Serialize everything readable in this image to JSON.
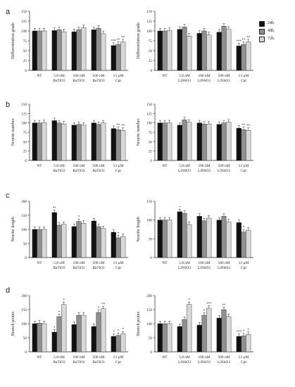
{
  "panels": [
    {
      "letter": "a"
    },
    {
      "letter": "b"
    },
    {
      "letter": "c"
    },
    {
      "letter": "d"
    }
  ],
  "legend": [
    {
      "label": "24h",
      "color": "#111111"
    },
    {
      "label": "48h",
      "color": "#8f8f8f"
    },
    {
      "label": "72h",
      "color": "#d9d9d9"
    }
  ],
  "series_names": [
    "24h",
    "48h",
    "72h"
  ],
  "colors": {
    "s24": "#111111",
    "s48": "#8f8f8f",
    "s72": "#d9d9d9"
  },
  "chart_data": [
    {
      "type": "bar",
      "panel": "a",
      "material": "BaTiO3",
      "ylabel": "Differentiation grade",
      "ylim": [
        0,
        150
      ],
      "yticks": [
        0,
        25,
        50,
        75,
        100,
        125,
        150
      ],
      "categories": [
        "NT",
        "5.8 nM BaTiO3",
        "100 nM BaTiO3",
        "500 nM BaTiO3",
        "13 µM Cpt"
      ],
      "series": [
        {
          "name": "24h",
          "values": [
            100,
            101,
            98,
            103,
            63
          ]
        },
        {
          "name": "48h",
          "values": [
            100,
            103,
            103,
            107,
            66
          ]
        },
        {
          "name": "72h",
          "values": [
            100,
            98,
            108,
            93,
            72
          ]
        }
      ],
      "annotations": [
        [
          "",
          "",
          ""
        ],
        [
          "",
          "",
          ""
        ],
        [
          "",
          "",
          ""
        ],
        [
          "",
          "",
          ""
        ],
        [
          "***",
          "**",
          "**"
        ]
      ]
    },
    {
      "type": "bar",
      "panel": "a",
      "material": "LiNbO3",
      "ylabel": "Differentiation grade",
      "ylim": [
        0,
        150
      ],
      "yticks": [
        0,
        25,
        50,
        75,
        100,
        125,
        150
      ],
      "categories": [
        "NT",
        "5.8 nM LiNbO3",
        "100 nM LiNbO3",
        "500 nM LiNbO3",
        "13 µM Cpt"
      ],
      "series": [
        {
          "name": "24h",
          "values": [
            100,
            104,
            94,
            97,
            62
          ]
        },
        {
          "name": "48h",
          "values": [
            100,
            110,
            100,
            112,
            66
          ]
        },
        {
          "name": "72h",
          "values": [
            101,
            87,
            90,
            104,
            72
          ]
        }
      ],
      "annotations": [
        [
          "",
          "",
          ""
        ],
        [
          "",
          "",
          ""
        ],
        [
          "",
          "",
          ""
        ],
        [
          "",
          "",
          ""
        ],
        [
          "***",
          "**",
          "**"
        ]
      ]
    },
    {
      "type": "bar",
      "panel": "b",
      "material": "BaTiO3",
      "ylabel": "Neurite number",
      "ylim": [
        0,
        150
      ],
      "yticks": [
        0,
        25,
        50,
        75,
        100,
        125,
        150
      ],
      "categories": [
        "NT",
        "5.8 nM BaTiO3",
        "100 nM BaTiO3",
        "500 nM BaTiO3",
        "13 µM Cpt"
      ],
      "series": [
        {
          "name": "24h",
          "values": [
            100,
            106,
            94,
            100,
            85
          ]
        },
        {
          "name": "48h",
          "values": [
            100,
            100,
            96,
            96,
            82
          ]
        },
        {
          "name": "72h",
          "values": [
            101,
            97,
            94,
            100,
            80
          ]
        }
      ],
      "annotations": [
        [
          "",
          "",
          ""
        ],
        [
          "",
          "",
          ""
        ],
        [
          "",
          "",
          ""
        ],
        [
          "",
          "",
          ""
        ],
        [
          "",
          "**",
          "**"
        ]
      ]
    },
    {
      "type": "bar",
      "panel": "b",
      "material": "LiNbO3",
      "ylabel": "Neurite number",
      "ylim": [
        0,
        150
      ],
      "yticks": [
        0,
        25,
        50,
        75,
        100,
        125,
        150
      ],
      "categories": [
        "NT",
        "5.8 nM LiNbO3",
        "100 nM LiNbO3",
        "500 nM LiNbO3",
        "13 µM Cpt"
      ],
      "series": [
        {
          "name": "24h",
          "values": [
            100,
            94,
            100,
            96,
            86
          ]
        },
        {
          "name": "48h",
          "values": [
            100,
            108,
            97,
            100,
            82
          ]
        },
        {
          "name": "72h",
          "values": [
            100,
            102,
            97,
            102,
            80
          ]
        }
      ],
      "annotations": [
        [
          "",
          "",
          ""
        ],
        [
          "",
          "",
          ""
        ],
        [
          "",
          "",
          ""
        ],
        [
          "",
          "",
          ""
        ],
        [
          "",
          "**",
          "**"
        ]
      ]
    },
    {
      "type": "bar",
      "panel": "c",
      "material": "BaTiO3",
      "ylabel": "Neurite length",
      "ylim": [
        0,
        200
      ],
      "yticks": [
        0,
        50,
        100,
        150,
        200
      ],
      "categories": [
        "NT",
        "5.8 nM BaTiO3",
        "100 nM BaTiO3",
        "500 nM BaTiO3",
        "13 µM Cpt"
      ],
      "series": [
        {
          "name": "24h",
          "values": [
            100,
            160,
            110,
            130,
            90
          ]
        },
        {
          "name": "48h",
          "values": [
            100,
            115,
            128,
            110,
            70
          ]
        },
        {
          "name": "72h",
          "values": [
            100,
            118,
            122,
            103,
            75
          ]
        }
      ],
      "annotations": [
        [
          "",
          "",
          ""
        ],
        [
          "**",
          "",
          ""
        ],
        [
          "",
          "*",
          ""
        ],
        [
          "",
          "",
          ""
        ],
        [
          "",
          "*",
          ""
        ]
      ]
    },
    {
      "type": "bar",
      "panel": "c",
      "material": "LiNbO3",
      "ylabel": "Neurite length",
      "ylim": [
        0,
        150
      ],
      "yticks": [
        0,
        50,
        100,
        150
      ],
      "categories": [
        "NT",
        "5.8 nM LiNbO3",
        "100 nM LiNbO3",
        "500 nM LiNbO3",
        "13 µM Cpt"
      ],
      "series": [
        {
          "name": "24h",
          "values": [
            100,
            122,
            110,
            100,
            93
          ]
        },
        {
          "name": "48h",
          "values": [
            100,
            118,
            98,
            110,
            68
          ]
        },
        {
          "name": "72h",
          "values": [
            100,
            88,
            105,
            95,
            73
          ]
        }
      ],
      "annotations": [
        [
          "",
          "",
          ""
        ],
        [
          "*",
          "",
          ""
        ],
        [
          "",
          "",
          ""
        ],
        [
          "",
          "",
          ""
        ],
        [
          "",
          "*",
          ""
        ]
      ]
    },
    {
      "type": "bar",
      "panel": "d",
      "material": "BaTiO3",
      "ylabel": "Branch points",
      "ylim": [
        0,
        200
      ],
      "yticks": [
        0,
        50,
        100,
        150,
        200
      ],
      "categories": [
        "NT",
        "5.8 nM BaTiO3",
        "100 nM BaTiO3",
        "500 nM BaTiO3",
        "13 µM Cpt"
      ],
      "series": [
        {
          "name": "24h",
          "values": [
            100,
            70,
            97,
            90,
            55
          ]
        },
        {
          "name": "48h",
          "values": [
            102,
            125,
            130,
            140,
            58
          ]
        },
        {
          "name": "72h",
          "values": [
            100,
            168,
            130,
            153,
            63
          ]
        }
      ],
      "annotations": [
        [
          "",
          "",
          ""
        ],
        [
          "*",
          "*",
          "*"
        ],
        [
          "",
          "",
          ""
        ],
        [
          "",
          "*",
          "**"
        ],
        [
          "*",
          "*",
          "*"
        ]
      ]
    },
    {
      "type": "bar",
      "panel": "d",
      "material": "LiNbO3",
      "ylabel": "Branch points",
      "ylim": [
        0,
        200
      ],
      "yticks": [
        0,
        50,
        100,
        150,
        200
      ],
      "categories": [
        "NT",
        "5.8 nM LiNbO3",
        "100 nM LiNbO3",
        "500 nM LiNbO3",
        "13 µM Cpt"
      ],
      "series": [
        {
          "name": "24h",
          "values": [
            100,
            90,
            95,
            120,
            55
          ]
        },
        {
          "name": "48h",
          "values": [
            100,
            115,
            130,
            150,
            57
          ]
        },
        {
          "name": "72h",
          "values": [
            100,
            168,
            155,
            125,
            62
          ]
        }
      ],
      "annotations": [
        [
          "",
          "",
          ""
        ],
        [
          "",
          "",
          "*"
        ],
        [
          "",
          "*",
          "***"
        ],
        [
          "",
          "**",
          ""
        ],
        [
          "***",
          "*",
          "*"
        ]
      ]
    }
  ]
}
